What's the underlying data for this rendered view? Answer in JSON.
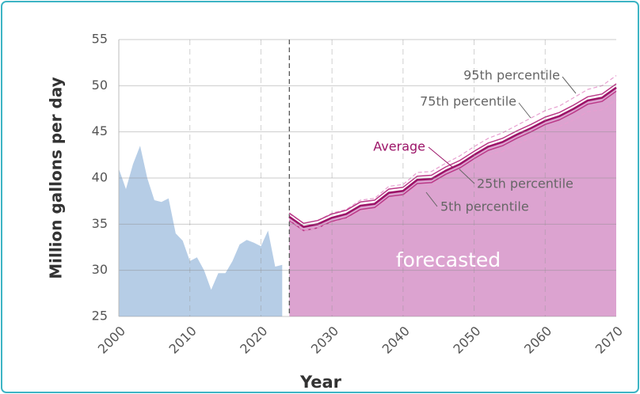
{
  "chart_data": {
    "type": "area",
    "x_label": "Year",
    "y_label": "Million gallons per day",
    "xlim": [
      2000,
      2070
    ],
    "xticks": [
      2000,
      2010,
      2020,
      2030,
      2040,
      2050,
      2060,
      2070
    ],
    "ylim": [
      25,
      55
    ],
    "yticks": [
      25,
      30,
      35,
      40,
      45,
      50,
      55
    ],
    "grid": true,
    "series": [
      {
        "x": [
          2000,
          2001,
          2002,
          2003,
          2004,
          2005,
          2006,
          2007,
          2008,
          2009,
          2010,
          2011,
          2012,
          2013,
          2014,
          2015,
          2016,
          2017,
          2018,
          2019,
          2020,
          2021,
          2022,
          2023
        ],
        "values": [
          41.0,
          38.8,
          41.5,
          43.5,
          40.0,
          37.6,
          37.4,
          37.8,
          34.0,
          33.2,
          31.0,
          31.4,
          30.0,
          27.9,
          29.7,
          29.7,
          31.0,
          32.8,
          33.3,
          33.0,
          32.6,
          34.3,
          30.4,
          30.6
        ],
        "fill": "#b6cde6"
      },
      {
        "name": "Average",
        "x": [
          2024,
          2026,
          2028,
          2030,
          2032,
          2034,
          2036,
          2038,
          2040,
          2042,
          2044,
          2046,
          2048,
          2050,
          2052,
          2054,
          2056,
          2058,
          2060,
          2062,
          2064,
          2066,
          2068,
          2070
        ],
        "values": [
          35.8,
          34.7,
          35.0,
          35.7,
          36.1,
          37.0,
          37.2,
          38.4,
          38.6,
          39.8,
          39.9,
          40.8,
          41.5,
          42.5,
          43.4,
          43.9,
          44.7,
          45.4,
          46.2,
          46.7,
          47.5,
          48.4,
          48.7,
          49.8
        ],
        "fill": "#dca3d0",
        "color": "#9c1468"
      },
      {
        "name": "95th percentile",
        "x": [
          2024,
          2026,
          2028,
          2030,
          2032,
          2034,
          2036,
          2038,
          2040,
          2042,
          2044,
          2046,
          2048,
          2050,
          2052,
          2054,
          2056,
          2058,
          2060,
          2062,
          2064,
          2066,
          2068,
          2070
        ],
        "values": [
          36.1,
          35.1,
          35.4,
          36.2,
          36.6,
          37.6,
          37.8,
          39.1,
          39.3,
          40.6,
          40.7,
          41.6,
          42.4,
          43.4,
          44.3,
          44.9,
          45.7,
          46.5,
          47.3,
          47.8,
          48.7,
          49.6,
          50.0,
          51.1
        ],
        "color": "#e79fd0",
        "dash": true
      },
      {
        "name": "75th percentile",
        "x": [
          2024,
          2026,
          2028,
          2030,
          2032,
          2034,
          2036,
          2038,
          2040,
          2042,
          2044,
          2046,
          2048,
          2050,
          2052,
          2054,
          2056,
          2058,
          2060,
          2062,
          2064,
          2066,
          2068,
          2070
        ],
        "values": [
          36.2,
          35.1,
          35.4,
          36.1,
          36.5,
          37.4,
          37.6,
          38.8,
          39.0,
          40.2,
          40.3,
          41.2,
          41.9,
          42.9,
          43.8,
          44.3,
          45.1,
          45.8,
          46.6,
          47.1,
          47.9,
          48.8,
          49.1,
          50.2
        ],
        "color": "#bb3a88"
      },
      {
        "name": "25th percentile",
        "x": [
          2024,
          2026,
          2028,
          2030,
          2032,
          2034,
          2036,
          2038,
          2040,
          2042,
          2044,
          2046,
          2048,
          2050,
          2052,
          2054,
          2056,
          2058,
          2060,
          2062,
          2064,
          2066,
          2068,
          2070
        ],
        "values": [
          35.4,
          34.3,
          34.6,
          35.3,
          35.7,
          36.6,
          36.8,
          38.0,
          38.2,
          39.4,
          39.5,
          40.4,
          41.1,
          42.1,
          43.0,
          43.5,
          44.3,
          45.0,
          45.8,
          46.3,
          47.1,
          48.0,
          48.3,
          49.4
        ],
        "color": "#bb3a88"
      },
      {
        "name": "5th percentile",
        "x": [
          2024,
          2026,
          2028,
          2030,
          2032,
          2034,
          2036,
          2038,
          2040,
          2042,
          2044,
          2046,
          2048,
          2050,
          2052,
          2054,
          2056,
          2058,
          2060,
          2062,
          2064,
          2066,
          2068,
          2070
        ],
        "values": [
          35.5,
          34.3,
          34.6,
          35.2,
          35.6,
          36.4,
          36.6,
          37.7,
          37.9,
          39.0,
          39.1,
          40.0,
          40.6,
          41.6,
          42.5,
          42.9,
          43.7,
          44.3,
          45.1,
          45.6,
          46.3,
          47.2,
          47.4,
          48.5
        ],
        "color": "#e79fd0",
        "dash": true
      }
    ],
    "annotations": [
      {
        "text": "forecasted"
      }
    ]
  }
}
